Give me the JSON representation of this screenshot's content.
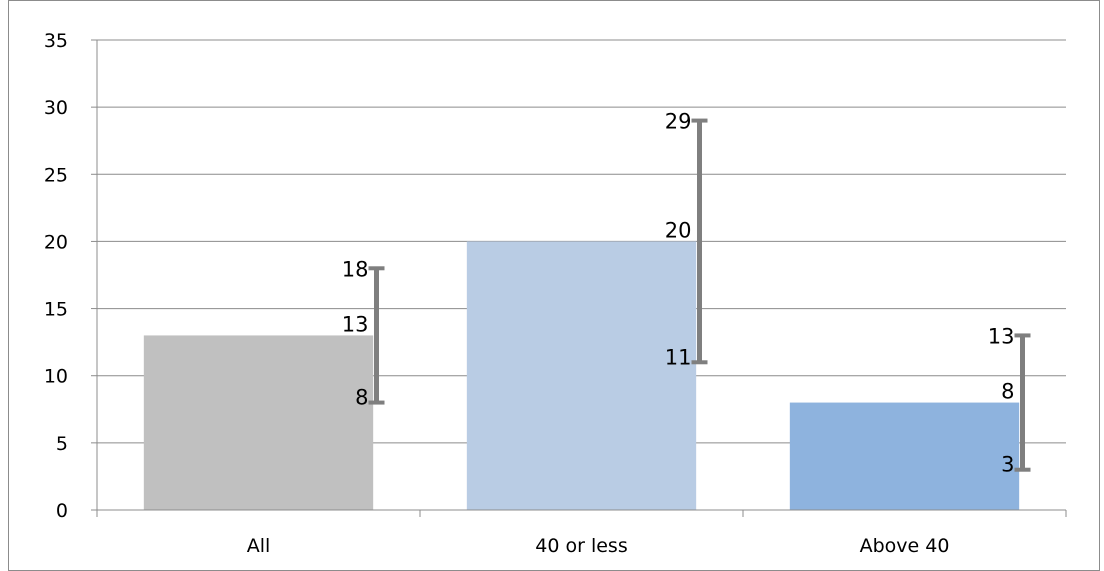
{
  "chart_data": {
    "type": "bar",
    "categories": [
      "All",
      "40 or less",
      "Above 40"
    ],
    "values": [
      13,
      20,
      8
    ],
    "error_low": [
      8,
      11,
      3
    ],
    "error_high": [
      18,
      29,
      13
    ],
    "ylim": [
      0,
      35
    ],
    "yticks": [
      "0",
      "5",
      "10",
      "15",
      "20",
      "25",
      "30",
      "35"
    ],
    "grid": true,
    "colors": [
      "#c0c0c0",
      "#b9cce4",
      "#8eb3de"
    ],
    "error_bar_color": "#7f7f7f",
    "gridline_color": "#8c8c8c"
  }
}
